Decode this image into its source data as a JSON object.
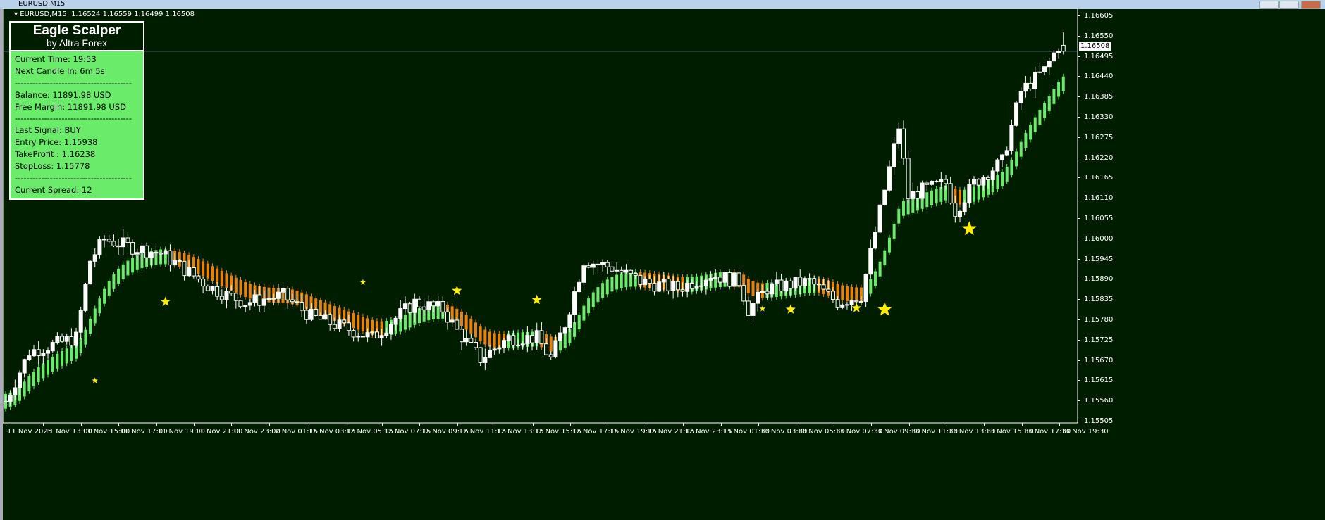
{
  "window": {
    "title": "EURUSD,M15"
  },
  "chart_header": {
    "symbol_timeframe": "EURUSD,M15",
    "ohlc": "1.16524 1.16559 1.16499 1.16508"
  },
  "panel": {
    "title": "Eagle Scalper",
    "subtitle": "by Altra Forex",
    "lines": [
      "Current Time: 19:53",
      "Next Candle In: 6m 5s",
      "----------------------------------------",
      "Balance: 11891.98 USD",
      "Free Margin: 11891.98 USD",
      "----------------------------------------",
      "Last Signal: BUY",
      "Entry Price: 1.15938",
      "TakeProfit : 1.16238",
      "StopLoss: 1.15778",
      "----------------------------------------",
      "Current Spread: 12"
    ]
  },
  "price_axis": {
    "ticks": [
      "1.16605",
      "1.16550",
      "1.16495",
      "1.16440",
      "1.16385",
      "1.16330",
      "1.16275",
      "1.16220",
      "1.16165",
      "1.16110",
      "1.16055",
      "1.16000",
      "1.15945",
      "1.15890",
      "1.15835",
      "1.15780",
      "1.15725",
      "1.15670",
      "1.15615",
      "1.15560",
      "1.15505"
    ],
    "last_price": "1.16508"
  },
  "time_axis": {
    "ticks": [
      "11 Nov 2025",
      "11 Nov 13:00",
      "11 Nov 15:00",
      "11 Nov 17:00",
      "11 Nov 19:00",
      "11 Nov 21:00",
      "11 Nov 23:00",
      "12 Nov 01:15",
      "12 Nov 03:15",
      "12 Nov 05:15",
      "12 Nov 07:15",
      "12 Nov 09:15",
      "12 Nov 11:15",
      "12 Nov 13:15",
      "12 Nov 15:15",
      "12 Nov 17:15",
      "12 Nov 19:15",
      "12 Nov 21:15",
      "12 Nov 23:15",
      "13 Nov 01:30",
      "13 Nov 03:30",
      "13 Nov 05:30",
      "13 Nov 07:30",
      "13 Nov 09:30",
      "13 Nov 11:30",
      "13 Nov 13:30",
      "13 Nov 15:30",
      "13 Nov 17:30",
      "13 Nov 19:30"
    ]
  },
  "colors": {
    "background": "#001d00",
    "bull_candle": "#ffffff",
    "bear_candle": "#001d00",
    "indicator_up": "#6aeb6a",
    "indicator_down": "#e8820c",
    "signal_star": "#ffee00",
    "panel_bg": "#6aeb6a"
  },
  "price_path": [
    [
      0,
      1.15558
    ],
    [
      5,
      1.15692
    ],
    [
      15,
      1.1573
    ],
    [
      18,
      1.1594
    ],
    [
      21,
      1.15998
    ],
    [
      26,
      1.15979
    ],
    [
      33,
      1.15959
    ],
    [
      44,
      1.15864
    ],
    [
      51,
      1.15826
    ],
    [
      59,
      1.15845
    ],
    [
      65,
      1.15788
    ],
    [
      74,
      1.15749
    ],
    [
      78,
      1.1573
    ],
    [
      87,
      1.15826
    ],
    [
      93,
      1.15807
    ],
    [
      96,
      1.15749
    ],
    [
      101,
      1.15673
    ],
    [
      107,
      1.1573
    ],
    [
      113,
      1.1573
    ],
    [
      116,
      1.15673
    ],
    [
      119,
      1.15768
    ],
    [
      123,
      1.1594
    ],
    [
      129,
      1.15921
    ],
    [
      135,
      1.15883
    ],
    [
      143,
      1.15864
    ],
    [
      150,
      1.15902
    ],
    [
      156,
      1.15883
    ],
    [
      158,
      1.15807
    ],
    [
      162,
      1.15864
    ],
    [
      171,
      1.15883
    ],
    [
      177,
      1.15826
    ],
    [
      182,
      1.15845
    ],
    [
      185,
      1.16017
    ],
    [
      188,
      1.16189
    ],
    [
      190,
      1.16303
    ],
    [
      192,
      1.16112
    ],
    [
      195,
      1.16131
    ],
    [
      200,
      1.1615
    ],
    [
      202,
      1.16074
    ],
    [
      206,
      1.1615
    ],
    [
      212,
      1.16208
    ],
    [
      216,
      1.16399
    ],
    [
      221,
      1.16456
    ],
    [
      224,
      1.16523
    ],
    [
      225,
      1.16508
    ]
  ],
  "signals": [
    [
      19,
      1.15614,
      "small"
    ],
    [
      34,
      1.15828,
      "medium"
    ],
    [
      76,
      1.15881,
      "small"
    ],
    [
      96,
      1.15858,
      "medium"
    ],
    [
      113,
      1.15833,
      "medium"
    ],
    [
      161,
      1.15809,
      "small"
    ],
    [
      167,
      1.15807,
      "medium"
    ],
    [
      181,
      1.15811,
      "medium"
    ],
    [
      187,
      1.15807,
      "large"
    ],
    [
      205,
      1.16026,
      "large"
    ]
  ]
}
